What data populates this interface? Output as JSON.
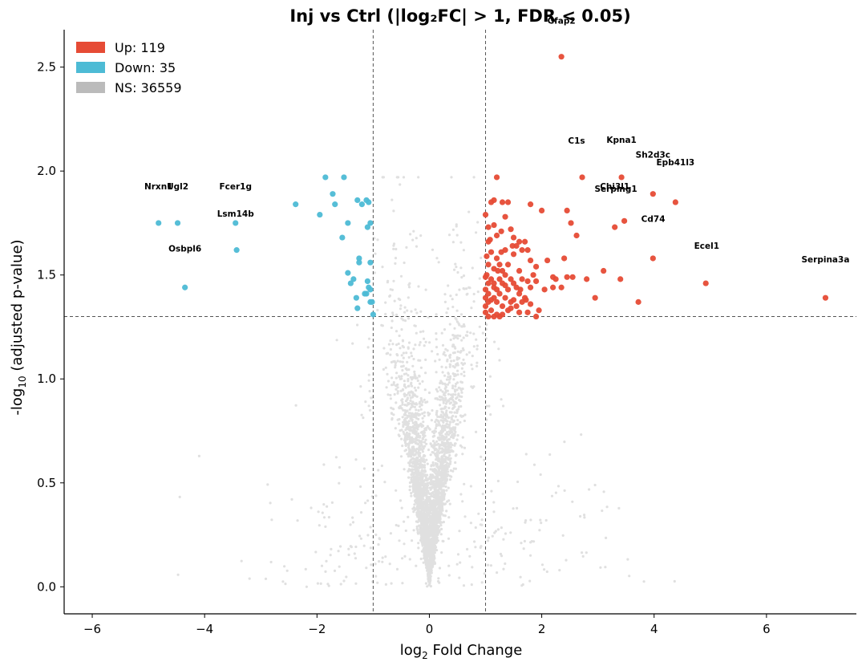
{
  "chart_data": {
    "type": "scatter",
    "title": "Inj vs Ctrl  (|log₂FC| > 1, FDR < 0.05)",
    "xlabel_main": "log",
    "xlabel_sub": "2",
    "xlabel_rest": " Fold Change",
    "ylabel_main": "-log",
    "ylabel_sub": "10",
    "ylabel_rest": " (adjusted p-value)",
    "xlim": [
      -6.5,
      7.6
    ],
    "ylim": [
      -0.13,
      2.68
    ],
    "x_ticks": [
      -6,
      -4,
      -2,
      0,
      2,
      4,
      6
    ],
    "x_tick_labels": [
      "−6",
      "−4",
      "−2",
      "0",
      "2",
      "4",
      "6"
    ],
    "y_ticks": [
      0.0,
      0.5,
      1.0,
      1.5,
      2.0,
      2.5
    ],
    "y_tick_labels": [
      "0.0",
      "0.5",
      "1.0",
      "1.5",
      "2.0",
      "2.5"
    ],
    "fc_threshold": [
      -1,
      1
    ],
    "p_threshold": 1.3,
    "legend": [
      {
        "label": "Up: 119",
        "color": "#e64b35"
      },
      {
        "label": "Down: 35",
        "color": "#4dbbd5"
      },
      {
        "label": "NS: 36559",
        "color": "#bbbbbb"
      }
    ],
    "legend_position": "top-left",
    "colors": {
      "up": "#e64b35",
      "down": "#4dbbd5",
      "ns": "#bbbbbb"
    },
    "series": [
      {
        "name": "Up",
        "count": 119,
        "points": [
          [
            2.35,
            2.55
          ],
          [
            1.2,
            1.97
          ],
          [
            2.72,
            1.97
          ],
          [
            3.42,
            1.97
          ],
          [
            3.98,
            1.89
          ],
          [
            4.38,
            1.85
          ],
          [
            1.1,
            1.85
          ],
          [
            1.15,
            1.86
          ],
          [
            1.3,
            1.85
          ],
          [
            1.4,
            1.85
          ],
          [
            1.8,
            1.84
          ],
          [
            2.0,
            1.81
          ],
          [
            2.45,
            1.81
          ],
          [
            1.0,
            1.79
          ],
          [
            1.35,
            1.78
          ],
          [
            2.52,
            1.75
          ],
          [
            1.05,
            1.73
          ],
          [
            1.15,
            1.74
          ],
          [
            1.45,
            1.72
          ],
          [
            3.3,
            1.73
          ],
          [
            3.47,
            1.76
          ],
          [
            1.2,
            1.69
          ],
          [
            1.05,
            1.66
          ],
          [
            1.5,
            1.68
          ],
          [
            1.6,
            1.66
          ],
          [
            1.7,
            1.66
          ],
          [
            2.62,
            1.69
          ],
          [
            1.28,
            1.61
          ],
          [
            1.55,
            1.64
          ],
          [
            1.65,
            1.62
          ],
          [
            1.75,
            1.62
          ],
          [
            1.1,
            1.61
          ],
          [
            1.02,
            1.59
          ],
          [
            1.5,
            1.6
          ],
          [
            1.2,
            1.58
          ],
          [
            1.8,
            1.57
          ],
          [
            2.1,
            1.57
          ],
          [
            2.4,
            1.58
          ],
          [
            3.98,
            1.58
          ],
          [
            1.05,
            1.55
          ],
          [
            1.25,
            1.55
          ],
          [
            1.4,
            1.55
          ],
          [
            1.15,
            1.53
          ],
          [
            1.9,
            1.54
          ],
          [
            1.3,
            1.52
          ],
          [
            1.6,
            1.52
          ],
          [
            1.35,
            1.5
          ],
          [
            1.85,
            1.5
          ],
          [
            1.0,
            1.49
          ],
          [
            2.2,
            1.49
          ],
          [
            2.45,
            1.49
          ],
          [
            2.55,
            1.49
          ],
          [
            3.1,
            1.52
          ],
          [
            1.1,
            1.48
          ],
          [
            1.25,
            1.48
          ],
          [
            1.45,
            1.48
          ],
          [
            1.65,
            1.48
          ],
          [
            2.8,
            1.48
          ],
          [
            3.4,
            1.48
          ],
          [
            2.25,
            1.48
          ],
          [
            1.05,
            1.46
          ],
          [
            1.3,
            1.46
          ],
          [
            1.5,
            1.46
          ],
          [
            1.75,
            1.47
          ],
          [
            1.9,
            1.47
          ],
          [
            4.92,
            1.46
          ],
          [
            1.15,
            1.44
          ],
          [
            1.35,
            1.45
          ],
          [
            1.55,
            1.44
          ],
          [
            1.0,
            1.43
          ],
          [
            1.2,
            1.43
          ],
          [
            1.4,
            1.43
          ],
          [
            2.05,
            1.43
          ],
          [
            2.2,
            1.44
          ],
          [
            1.05,
            1.41
          ],
          [
            1.25,
            1.41
          ],
          [
            1.6,
            1.41
          ],
          [
            1.0,
            1.39
          ],
          [
            1.15,
            1.39
          ],
          [
            1.35,
            1.39
          ],
          [
            1.5,
            1.38
          ],
          [
            1.7,
            1.39
          ],
          [
            2.95,
            1.39
          ],
          [
            7.05,
            1.39
          ],
          [
            1.05,
            1.37
          ],
          [
            1.2,
            1.37
          ],
          [
            1.45,
            1.37
          ],
          [
            1.65,
            1.37
          ],
          [
            1.0,
            1.35
          ],
          [
            1.3,
            1.35
          ],
          [
            1.55,
            1.35
          ],
          [
            1.8,
            1.36
          ],
          [
            3.72,
            1.37
          ],
          [
            1.1,
            1.33
          ],
          [
            1.4,
            1.33
          ],
          [
            1.95,
            1.33
          ],
          [
            1.2,
            1.31
          ],
          [
            1.3,
            1.31
          ],
          [
            1.6,
            1.32
          ],
          [
            1.75,
            1.32
          ],
          [
            1.05,
            1.3
          ],
          [
            1.15,
            1.3
          ],
          [
            1.9,
            1.3
          ],
          [
            1.25,
            1.3
          ],
          [
            1.45,
            1.34
          ],
          [
            1.0,
            1.32
          ],
          [
            1.1,
            1.38
          ],
          [
            1.15,
            1.46
          ],
          [
            1.35,
            1.62
          ],
          [
            1.48,
            1.64
          ],
          [
            1.62,
            1.43
          ],
          [
            1.8,
            1.44
          ],
          [
            2.35,
            1.44
          ],
          [
            1.22,
            1.52
          ],
          [
            1.08,
            1.67
          ],
          [
            1.28,
            1.71
          ],
          [
            1.02,
            1.5
          ],
          [
            1.72,
            1.38
          ]
        ]
      },
      {
        "name": "Down",
        "count": 35,
        "points": [
          [
            -1.85,
            1.97
          ],
          [
            -1.52,
            1.97
          ],
          [
            -1.72,
            1.89
          ],
          [
            -1.28,
            1.86
          ],
          [
            -1.12,
            1.86
          ],
          [
            -1.08,
            1.85
          ],
          [
            -1.2,
            1.84
          ],
          [
            -1.68,
            1.84
          ],
          [
            -2.38,
            1.84
          ],
          [
            -1.95,
            1.79
          ],
          [
            -1.45,
            1.75
          ],
          [
            -1.05,
            1.75
          ],
          [
            -1.1,
            1.73
          ],
          [
            -3.45,
            1.75
          ],
          [
            -4.48,
            1.75
          ],
          [
            -4.82,
            1.75
          ],
          [
            -1.55,
            1.68
          ],
          [
            -3.43,
            1.62
          ],
          [
            -1.25,
            1.58
          ],
          [
            -1.25,
            1.56
          ],
          [
            -1.05,
            1.56
          ],
          [
            -1.45,
            1.51
          ],
          [
            -1.35,
            1.48
          ],
          [
            -1.1,
            1.47
          ],
          [
            -1.4,
            1.46
          ],
          [
            -1.08,
            1.44
          ],
          [
            -1.05,
            1.43
          ],
          [
            -4.35,
            1.44
          ],
          [
            -1.12,
            1.41
          ],
          [
            -1.3,
            1.39
          ],
          [
            -1.05,
            1.37
          ],
          [
            -1.02,
            1.37
          ],
          [
            -1.28,
            1.34
          ],
          [
            -1.0,
            1.31
          ],
          [
            -1.15,
            1.41
          ]
        ]
      }
    ],
    "ns_count": 36559,
    "annotations": [
      {
        "label": "Gfap2",
        "x": 2.35,
        "y": 2.55,
        "dx": 0,
        "dy": -41
      },
      {
        "label": "C1s",
        "x": 2.72,
        "y": 1.97,
        "dx": -7,
        "dy": -42
      },
      {
        "label": "Kpna1",
        "x": 3.42,
        "y": 1.97,
        "dx": 0,
        "dy": -43
      },
      {
        "label": "Sh2d3c",
        "x": 3.98,
        "y": 1.89,
        "dx": 0,
        "dy": -45
      },
      {
        "label": "Epb41l3",
        "x": 4.38,
        "y": 1.85,
        "dx": 0,
        "dy": -46
      },
      {
        "label": "Chi3l1",
        "x": 3.3,
        "y": 1.73,
        "dx": 0,
        "dy": -47
      },
      {
        "label": "Serping1",
        "x": 3.42,
        "y": 1.97,
        "dx": -7,
        "dy": 18
      },
      {
        "label": "Cd74",
        "x": 3.47,
        "y": 1.76,
        "dx": 36,
        "dy": 1
      },
      {
        "label": "Ecel1",
        "x": 3.98,
        "y": 1.58,
        "dx": 67,
        "dy": -12
      },
      {
        "label": "Serpina3a",
        "x": 7.05,
        "y": 1.39,
        "dx": 0,
        "dy": -44
      },
      {
        "label": "Nrxn1",
        "x": -4.82,
        "y": 1.75,
        "dx": 0,
        "dy": -42
      },
      {
        "label": "Ugl2",
        "x": -4.48,
        "y": 1.75,
        "dx": 0,
        "dy": -42
      },
      {
        "label": "Fcer1g",
        "x": -3.45,
        "y": 1.75,
        "dx": 0,
        "dy": -42
      },
      {
        "label": "Lsm14b",
        "x": -3.45,
        "y": 1.75,
        "dx": 0,
        "dy": -8
      },
      {
        "label": "Osbpl6",
        "x": -4.35,
        "y": 1.44,
        "dx": 0,
        "dy": -45
      }
    ]
  }
}
